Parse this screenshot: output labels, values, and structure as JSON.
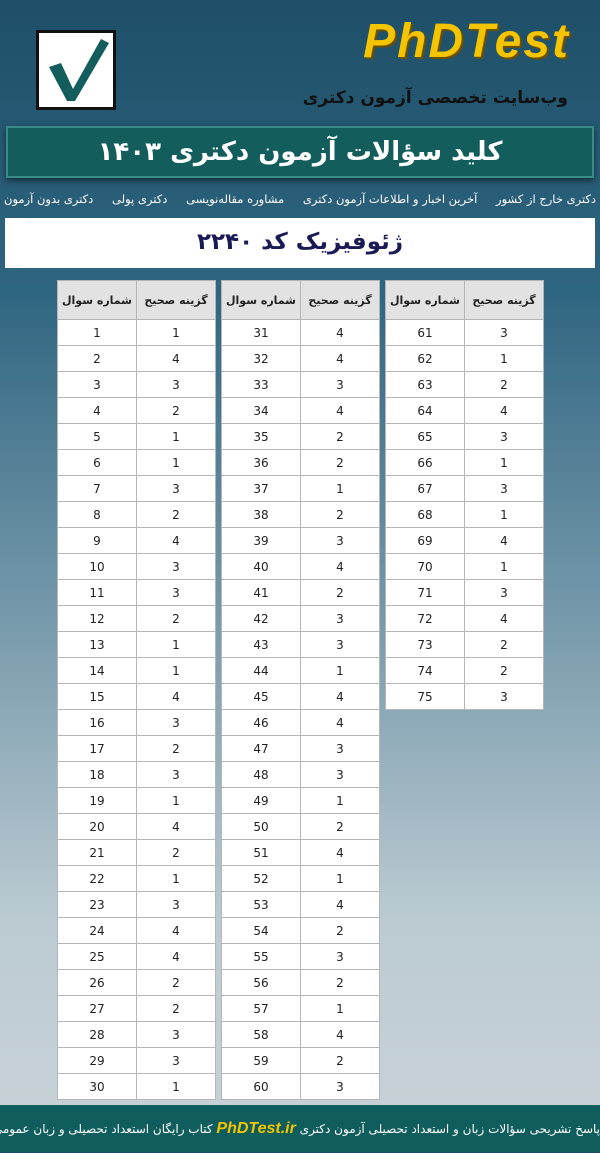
{
  "header": {
    "brand": "PhDTest",
    "subtitle": "وب‌سایت تخصصی آزمون دکتری",
    "title": "کلید سؤالات آزمون دکتری ۱۴۰۳",
    "logo_icon": "checkmark-icon"
  },
  "nav": [
    "دکتری بدون آزمون",
    "دکتری پولی",
    "مشاوره مقاله‌نویسی",
    "آخرین اخبار و اطلاعات آزمون دکتری",
    "دکتری خارج از کشور"
  ],
  "exam": "ژئوفیزیک کد ۲۲۴۰",
  "table": {
    "col_number": "شماره سوال",
    "col_answer": "گزینه صحیح",
    "groups": [
      {
        "start": 1,
        "answers": [
          1,
          4,
          3,
          2,
          1,
          1,
          3,
          2,
          4,
          3,
          3,
          2,
          1,
          1,
          4,
          3,
          2,
          3,
          1,
          4,
          2,
          1,
          3,
          4,
          4,
          2,
          2,
          3,
          3,
          1
        ]
      },
      {
        "start": 31,
        "answers": [
          4,
          4,
          3,
          4,
          2,
          2,
          1,
          2,
          3,
          4,
          2,
          3,
          3,
          1,
          4,
          4,
          3,
          3,
          1,
          2,
          4,
          1,
          4,
          2,
          3,
          2,
          1,
          4,
          2,
          3
        ]
      },
      {
        "start": 61,
        "answers": [
          3,
          1,
          2,
          4,
          3,
          1,
          3,
          1,
          4,
          1,
          3,
          4,
          2,
          2,
          3
        ]
      }
    ]
  },
  "footer": {
    "text_before": "پاسخ تشریحی سؤالات زبان و استعداد تحصیلی آزمون دکتری",
    "brand": "PhDTest.ir",
    "text_after": "کتاب رایگان استعداد تحصیلی و زبان عمومی"
  }
}
